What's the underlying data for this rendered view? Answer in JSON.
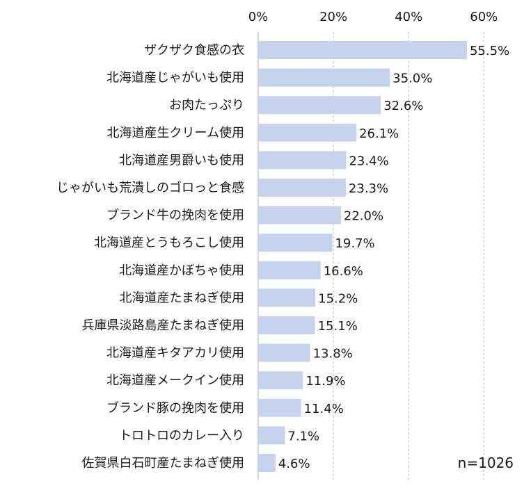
{
  "chart_data": {
    "type": "bar",
    "orientation": "horizontal",
    "categories": [
      "ザクザク食感の衣",
      "北海道産じゃがいも使用",
      "お肉たっぷり",
      "北海道産生クリーム使用",
      "北海道産男爵いも使用",
      "じゃがいも荒潰しのゴロっと食感",
      "ブランド牛の挽肉を使用",
      "北海道産とうもろこし使用",
      "北海道産かぼちゃ使用",
      "北海道産たまねぎ使用",
      "兵庫県淡路島産たまねぎ使用",
      "北海道産キタアカリ使用",
      "北海道産メークイン使用",
      "ブランド豚の挽肉を使用",
      "トロトロのカレー入り",
      "佐賀県白石町産たまねぎ使用"
    ],
    "values": [
      55.5,
      35.0,
      32.6,
      26.1,
      23.4,
      23.3,
      22.0,
      19.7,
      16.6,
      15.2,
      15.1,
      13.8,
      11.9,
      11.4,
      7.1,
      4.6
    ],
    "value_labels": [
      "55.5%",
      "35.0%",
      "32.6%",
      "26.1%",
      "23.4%",
      "23.3%",
      "22.0%",
      "19.7%",
      "16.6%",
      "15.2%",
      "15.1%",
      "13.8%",
      "11.9%",
      "11.4%",
      "7.1%",
      "4.6%"
    ],
    "xlim": [
      0,
      65
    ],
    "ticks": [
      0,
      20,
      40,
      60
    ],
    "tick_labels": [
      "0%",
      "20%",
      "40%",
      "60%"
    ],
    "axis_position": "top",
    "grid": true,
    "bar_color": "#c5d3ed",
    "grid_color": "#bbbbbb",
    "annotation": "n=1026"
  }
}
